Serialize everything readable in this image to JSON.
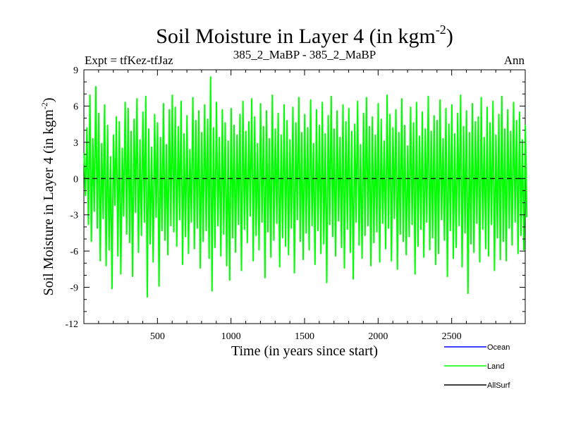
{
  "chart_data": {
    "type": "line",
    "title": "Soil Moisture in Layer 4 (in kgm",
    "title_sup": "-2",
    "title_close": ")",
    "subtitle_left": "Expt = tfKez-tfJaz",
    "subtitle_center": "385_2_MaBP - 385_2_MaBP",
    "subtitle_right": "Ann",
    "xlabel": "Time (in years since start)",
    "ylabel": "Soil Moisture in Layer 4 (in kgm",
    "ylabel_sup": "-2",
    "ylabel_close": ")",
    "xlim": [
      0,
      3000
    ],
    "ylim": [
      -12,
      9
    ],
    "xticks": [
      500,
      1000,
      1500,
      2000,
      2500
    ],
    "xtick_labels": [
      "500",
      "1000",
      "1500",
      "2000",
      "2500"
    ],
    "yticks": [
      9,
      6,
      3,
      0,
      -3,
      -6,
      -9,
      -12
    ],
    "ytick_labels": [
      "9",
      "6",
      "3",
      "0",
      "-3",
      "-6",
      "-9",
      "-12"
    ],
    "zero_line": 0,
    "series": [
      {
        "name": "Ocean",
        "color": "#0000ff",
        "values": []
      },
      {
        "name": "Land",
        "color": "#00ff00",
        "x_start": 1,
        "x_step": 10,
        "values": [
          2.1,
          -1.4,
          4.2,
          -3.8,
          6.9,
          -5.2,
          3.3,
          -2.7,
          7.6,
          -4.1,
          5.4,
          -6.8,
          2.9,
          -3.3,
          6.1,
          -7.2,
          4.4,
          -5.9,
          1.8,
          -9.1,
          3.6,
          -2.2,
          5.1,
          -6.4,
          4.7,
          -7.9,
          2.5,
          -3.1,
          6.3,
          -4.6,
          5.8,
          -5.3,
          3.9,
          -8.1,
          4.9,
          -2.8,
          6.6,
          -6.1,
          3.2,
          -4.7,
          5.5,
          -3.6,
          6.8,
          -9.8,
          4.1,
          -5.4,
          2.6,
          -6.9,
          5.3,
          -3.2,
          4.6,
          -8.9,
          3.4,
          -4.3,
          6.2,
          -5.1,
          2.8,
          -6.3,
          5.7,
          -3.9,
          6.9,
          -4.4,
          5.9,
          -5.6,
          4.3,
          -3.4,
          6.4,
          -7.1,
          3.7,
          -4.8,
          5.2,
          -6.2,
          2.4,
          -3.6,
          6.7,
          -5.8,
          4.8,
          -4.1,
          5.6,
          -7.4,
          3.8,
          -5.2,
          6.1,
          -4.3,
          4.9,
          -6.6,
          8.4,
          -9.3,
          4.2,
          -5.7,
          6.3,
          -3.9,
          3.4,
          -6.4,
          5.7,
          -4.6,
          4.6,
          -7.2,
          3.1,
          -8.4,
          5.8,
          -4.9,
          4.4,
          -6.1,
          3.6,
          -3.8,
          5.3,
          -7.6,
          6.4,
          -4.2,
          3.9,
          -5.3,
          4.7,
          -3.1,
          6.6,
          -6.8,
          5.1,
          -4.7,
          2.9,
          -5.9,
          6.2,
          -3.6,
          4.3,
          -8.2,
          5.6,
          -4.4,
          3.3,
          -6.5,
          6.9,
          -5.1,
          4.1,
          -3.7,
          5.4,
          -7.3,
          3.6,
          -4.9,
          6.1,
          -5.6,
          4.8,
          -6.3,
          3.2,
          -4.1,
          5.9,
          -7.8,
          4.6,
          -3.4,
          6.7,
          -5.2,
          3.8,
          -6.7,
          5.3,
          -4.5,
          4.2,
          -5.9,
          6.5,
          -3.9,
          2.9,
          -7.1,
          5.7,
          -4.3,
          4.4,
          -6.2,
          6.3,
          -5.4,
          3.7,
          -8.6,
          5.2,
          -3.8,
          6.8,
          -4.8,
          4.1,
          -6.4,
          5.6,
          -3.5,
          3.4,
          -5.7,
          6.1,
          -7.4,
          4.7,
          -4.2,
          5.8,
          -6.1,
          3.9,
          -8.3,
          4.5,
          -3.6,
          6.4,
          -5.5,
          2.8,
          -6.6,
          5.4,
          -4.7,
          6.7,
          -3.9,
          4.3,
          -7.2,
          5.1,
          -5.3,
          3.6,
          -4.4,
          6.2,
          -6.9,
          4.9,
          -3.7,
          3.1,
          -5.8,
          6.9,
          -4.1,
          5.3,
          -6.8,
          4.2,
          -3.3,
          5.7,
          -7.5,
          3.8,
          -4.6,
          6.6,
          -5.2,
          4.4,
          -6.3,
          2.7,
          -4.8,
          5.9,
          -3.8,
          4.6,
          -7.9,
          6.3,
          -5.6,
          3.5,
          -4.2,
          5.5,
          -6.5,
          4.1,
          -3.6,
          6.8,
          -5.9,
          3.9,
          -4.9,
          5.2,
          -7.1,
          4.8,
          -6.2,
          6.5,
          -3.4,
          3.3,
          -5.1,
          5.8,
          -8.1,
          4.5,
          -4.3,
          6.1,
          -6.6,
          3.7,
          -5.7,
          5.4,
          -3.9,
          6.9,
          -7.3,
          4.3,
          -4.5,
          5.6,
          -9.5,
          3.8,
          -5.4,
          6.2,
          -6.1,
          4.7,
          -3.7,
          5.1,
          -6.9,
          6.7,
          -4.2,
          3.4,
          -5.8,
          5.9,
          -6.4,
          4.6,
          -3.8,
          6.4,
          -7.6,
          3.6,
          -4.9,
          5.3,
          -6.7,
          6.8,
          -5.2,
          4.1,
          -6.8,
          5.7,
          -4.1,
          3.9,
          -5.5,
          6.3,
          -3.6,
          4.8,
          -6.2,
          5.5,
          -4.7,
          3.2,
          -5.9,
          4.4,
          -3.2
        ]
      },
      {
        "name": "AllSurf",
        "color": "#000000",
        "values": []
      }
    ],
    "legend_position": "bottom-right",
    "grid": false
  }
}
